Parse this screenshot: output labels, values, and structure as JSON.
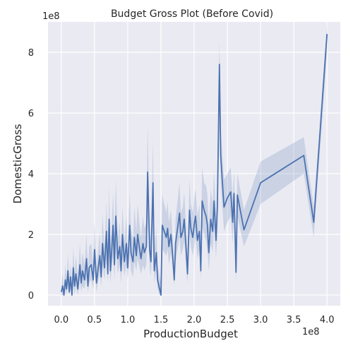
{
  "chart_data": {
    "type": "line",
    "title": "Budget Gross Plot (Before Covid)",
    "xlabel": "ProductionBudget",
    "ylabel": "DomesticGross",
    "x_offset_label": "1e8",
    "y_offset_label": "1e8",
    "xlim": [
      -0.2,
      4.2
    ],
    "ylim": [
      -0.35,
      9.0
    ],
    "xticks": [
      0.0,
      0.5,
      1.0,
      1.5,
      2.0,
      2.5,
      3.0,
      3.5,
      4.0
    ],
    "xtick_labels": [
      "0.0",
      "0.5",
      "1.0",
      "1.5",
      "2.0",
      "2.5",
      "3.0",
      "3.5",
      "4.0"
    ],
    "yticks": [
      0,
      2,
      4,
      6,
      8
    ],
    "ytick_labels": [
      "0",
      "2",
      "4",
      "6",
      "8"
    ],
    "grid": true,
    "colors": {
      "line": "#4c72b0",
      "band": "#4c72b0",
      "plot_bg": "#eaeaf2",
      "grid": "#ffffff"
    },
    "series": [
      {
        "x": [
          0.0,
          0.02,
          0.04,
          0.06,
          0.08,
          0.1,
          0.12,
          0.14,
          0.16,
          0.18,
          0.2,
          0.22,
          0.25,
          0.28,
          0.3,
          0.32,
          0.35,
          0.38,
          0.4,
          0.42,
          0.45,
          0.48,
          0.5,
          0.53,
          0.55,
          0.58,
          0.6,
          0.62,
          0.65,
          0.68,
          0.7,
          0.72,
          0.74,
          0.76,
          0.78,
          0.8,
          0.82,
          0.85,
          0.88,
          0.9,
          0.92,
          0.95,
          0.98,
          1.0,
          1.03,
          1.05,
          1.08,
          1.1,
          1.13,
          1.15,
          1.18,
          1.2,
          1.23,
          1.25,
          1.28,
          1.3,
          1.33,
          1.35,
          1.38,
          1.4,
          1.43,
          1.45,
          1.48,
          1.5,
          1.52,
          1.55,
          1.58,
          1.6,
          1.62,
          1.65,
          1.68,
          1.7,
          1.72,
          1.75,
          1.78,
          1.8,
          1.83,
          1.85,
          1.88,
          1.9,
          1.93,
          1.95,
          1.98,
          2.0,
          2.02,
          2.05,
          2.08,
          2.1,
          2.12,
          2.15,
          2.18,
          2.2,
          2.22,
          2.25,
          2.28,
          2.3,
          2.33,
          2.35,
          2.38,
          2.4,
          2.45,
          2.5,
          2.55,
          2.58,
          2.6,
          2.63,
          2.65,
          2.75,
          3.0,
          3.65,
          3.8,
          4.0
        ],
        "y": [
          0.1,
          0.3,
          0.0,
          0.5,
          0.2,
          0.8,
          0.1,
          0.6,
          0.0,
          0.9,
          0.3,
          0.7,
          0.2,
          1.0,
          0.4,
          0.8,
          0.5,
          1.2,
          0.3,
          0.9,
          1.0,
          0.5,
          1.5,
          0.4,
          0.8,
          1.3,
          0.6,
          1.7,
          0.9,
          2.1,
          0.7,
          2.5,
          0.8,
          1.5,
          2.3,
          1.0,
          2.6,
          1.2,
          1.6,
          0.8,
          2.0,
          1.1,
          1.7,
          0.9,
          2.3,
          1.4,
          1.1,
          1.9,
          1.3,
          2.0,
          1.5,
          1.2,
          1.7,
          1.4,
          1.6,
          4.05,
          1.5,
          1.1,
          3.7,
          0.8,
          1.4,
          0.5,
          0.2,
          0.0,
          2.3,
          2.1,
          1.9,
          2.2,
          1.6,
          2.0,
          1.2,
          0.5,
          1.7,
          2.2,
          2.7,
          1.9,
          2.1,
          2.5,
          1.5,
          0.7,
          2.8,
          2.2,
          1.9,
          2.3,
          2.6,
          1.8,
          2.1,
          0.8,
          3.1,
          2.8,
          2.6,
          2.3,
          1.4,
          2.5,
          2.1,
          3.1,
          1.8,
          2.9,
          7.6,
          4.6,
          2.9,
          3.2,
          3.4,
          2.4,
          3.35,
          0.75,
          3.3,
          2.15,
          3.7,
          4.6,
          2.4,
          8.6
        ],
        "band_lower": [
          0.0,
          0.0,
          0.0,
          0.2,
          0.0,
          0.4,
          0.0,
          0.2,
          0.0,
          0.4,
          0.0,
          0.3,
          0.0,
          0.5,
          0.1,
          0.3,
          0.2,
          0.6,
          0.1,
          0.4,
          0.5,
          0.2,
          0.8,
          0.1,
          0.4,
          0.7,
          0.3,
          1.0,
          0.5,
          1.2,
          0.4,
          1.4,
          0.4,
          0.9,
          1.3,
          0.5,
          1.5,
          0.7,
          1.0,
          0.4,
          1.2,
          0.6,
          1.0,
          0.5,
          1.4,
          0.8,
          0.6,
          1.1,
          0.8,
          1.2,
          0.9,
          0.7,
          1.0,
          0.8,
          1.0,
          2.6,
          0.9,
          0.6,
          2.4,
          0.4,
          0.8,
          0.2,
          0.0,
          0.0,
          1.5,
          1.4,
          1.3,
          1.5,
          1.0,
          1.4,
          0.8,
          0.3,
          1.1,
          1.5,
          1.9,
          1.3,
          1.5,
          1.8,
          0.9,
          0.4,
          2.0,
          1.6,
          1.3,
          1.6,
          1.9,
          1.2,
          1.5,
          0.5,
          2.3,
          2.0,
          1.8,
          1.5,
          0.8,
          1.7,
          1.4,
          2.3,
          1.2,
          2.1,
          6.5,
          3.7,
          2.1,
          2.4,
          2.6,
          1.7,
          2.6,
          0.4,
          2.6,
          1.6,
          3.0,
          4.0,
          1.9,
          8.0
        ],
        "band_upper": [
          0.3,
          0.7,
          0.2,
          1.0,
          0.5,
          1.4,
          0.4,
          1.1,
          0.2,
          1.6,
          0.7,
          1.3,
          0.6,
          1.7,
          0.9,
          1.4,
          1.0,
          2.0,
          0.8,
          1.6,
          1.7,
          1.0,
          2.4,
          0.9,
          1.4,
          2.1,
          1.1,
          2.7,
          1.5,
          3.1,
          1.2,
          3.6,
          1.4,
          2.3,
          3.4,
          1.7,
          3.8,
          1.9,
          2.4,
          1.4,
          2.9,
          1.8,
          2.6,
          1.5,
          3.4,
          2.2,
          1.8,
          2.9,
          2.1,
          3.0,
          2.3,
          1.9,
          2.6,
          2.2,
          2.4,
          5.6,
          2.3,
          1.8,
          5.1,
          1.4,
          2.2,
          1.0,
          0.6,
          0.4,
          3.3,
          3.0,
          2.7,
          3.1,
          2.4,
          2.8,
          1.8,
          0.9,
          2.5,
          3.1,
          3.7,
          2.7,
          2.9,
          3.4,
          2.2,
          1.2,
          3.8,
          3.0,
          2.7,
          3.2,
          3.5,
          2.6,
          3.0,
          1.3,
          4.2,
          3.7,
          3.6,
          3.3,
          2.2,
          3.5,
          3.0,
          4.1,
          2.6,
          3.8,
          8.4,
          5.5,
          3.8,
          4.0,
          4.2,
          3.2,
          4.1,
          1.2,
          4.0,
          2.8,
          4.4,
          5.2,
          2.9,
          9.0
        ]
      }
    ]
  }
}
